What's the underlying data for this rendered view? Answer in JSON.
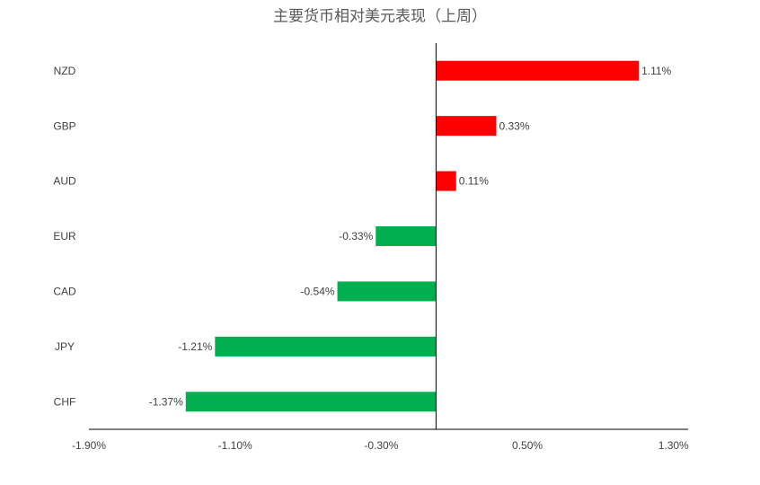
{
  "chart_data": {
    "type": "hbar",
    "title": "主要货币相对美元表现（上周）",
    "categories": [
      "NZD",
      "GBP",
      "AUD",
      "EUR",
      "CAD",
      "JPY",
      "CHF"
    ],
    "values": [
      1.11,
      0.33,
      0.11,
      -0.33,
      -0.54,
      -1.21,
      -1.37
    ],
    "value_labels": [
      "1.11%",
      "0.33%",
      "0.11%",
      "-0.33%",
      "-0.54%",
      "-1.21%",
      "-1.37%"
    ],
    "colors": [
      "#ff0000",
      "#ff0000",
      "#ff0000",
      "#00b050",
      "#00b050",
      "#00b050",
      "#00b050"
    ],
    "xlim": [
      -1.9,
      1.38
    ],
    "xticks": [
      {
        "value": -1.9,
        "label": "-1.90%"
      },
      {
        "value": -1.1,
        "label": "-1.10%"
      },
      {
        "value": -0.3,
        "label": "-0.30%"
      },
      {
        "value": 0.5,
        "label": "0.50%"
      },
      {
        "value": 1.3,
        "label": "1.30%"
      }
    ],
    "grid": false
  }
}
